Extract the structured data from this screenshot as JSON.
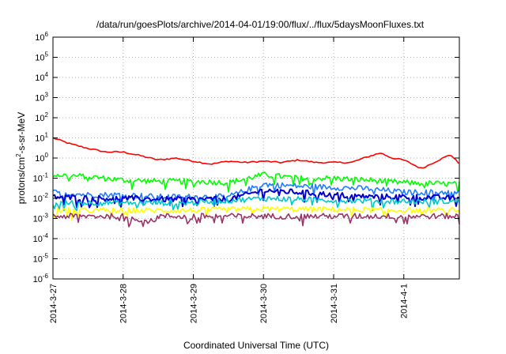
{
  "chart_data": {
    "type": "line",
    "title": "/data/run/goesPlots/archive/2014-04-01/19:00/flux/../flux/5daysMoonFluxes.txt",
    "xlabel": "Coordinated Universal Time (UTC)",
    "ylabel": {
      "base": "protons/cm",
      "sup": "2",
      "rest": "-s-sr-MeV"
    },
    "y_scale": "log",
    "ylim_exponents": [
      -6,
      6
    ],
    "y_tick_exponents": [
      -6,
      -5,
      -4,
      -3,
      -2,
      -1,
      0,
      1,
      2,
      3,
      4,
      5,
      6
    ],
    "y_tick_base": "10",
    "xlim": [
      "2014-03-27T00:00",
      "2014-04-01T19:00"
    ],
    "x_ticks": [
      {
        "date": "2014-03-27T00:00",
        "label": "2014-3-27"
      },
      {
        "date": "2014-03-28T00:00",
        "label": "2014-3-28"
      },
      {
        "date": "2014-03-29T00:00",
        "label": "2014-3-29"
      },
      {
        "date": "2014-03-30T00:00",
        "label": "2014-3-30"
      },
      {
        "date": "2014-03-31T00:00",
        "label": "2014-3-31"
      },
      {
        "date": "2014-04-01T00:00",
        "label": "2014-4-1"
      }
    ],
    "grid": true,
    "series": [
      {
        "color": "#ff0000",
        "kind": "smooth",
        "points": [
          [
            "2014-03-27T00:00",
            10
          ],
          [
            "2014-03-27T06:00",
            5
          ],
          [
            "2014-03-27T12:00",
            3
          ],
          [
            "2014-03-27T18:00",
            2
          ],
          [
            "2014-03-28T00:00",
            2
          ],
          [
            "2014-03-28T06:00",
            1.3
          ],
          [
            "2014-03-28T12:00",
            0.8
          ],
          [
            "2014-03-28T18:00",
            1.0
          ],
          [
            "2014-03-29T00:00",
            0.7
          ],
          [
            "2014-03-29T06:00",
            0.5
          ],
          [
            "2014-03-29T12:00",
            0.7
          ],
          [
            "2014-03-29T18:00",
            0.6
          ],
          [
            "2014-03-30T00:00",
            0.7
          ],
          [
            "2014-03-30T06:00",
            0.6
          ],
          [
            "2014-03-30T12:00",
            0.8
          ],
          [
            "2014-03-30T18:00",
            0.6
          ],
          [
            "2014-03-31T00:00",
            0.6
          ],
          [
            "2014-03-31T06:00",
            0.6
          ],
          [
            "2014-03-31T12:00",
            1.2
          ],
          [
            "2014-03-31T16:00",
            1.8
          ],
          [
            "2014-03-31T20:00",
            1.0
          ],
          [
            "2014-04-01T00:00",
            0.8
          ],
          [
            "2014-04-01T06:00",
            0.3
          ],
          [
            "2014-04-01T12:00",
            0.8
          ],
          [
            "2014-04-01T16:00",
            1.5
          ],
          [
            "2014-04-01T19:00",
            0.5
          ]
        ]
      },
      {
        "color": "#00ff00",
        "kind": "noisy",
        "points": [
          [
            "2014-03-27T00:00",
            0.15
          ],
          [
            "2014-03-27T12:00",
            0.12
          ],
          [
            "2014-03-28T00:00",
            0.08
          ],
          [
            "2014-03-28T12:00",
            0.07
          ],
          [
            "2014-03-29T00:00",
            0.07
          ],
          [
            "2014-03-29T12:00",
            0.06
          ],
          [
            "2014-03-30T00:00",
            0.15
          ],
          [
            "2014-03-30T12:00",
            0.1
          ],
          [
            "2014-03-31T00:00",
            0.1
          ],
          [
            "2014-03-31T12:00",
            0.08
          ],
          [
            "2014-04-01T00:00",
            0.06
          ],
          [
            "2014-04-01T19:00",
            0.05
          ]
        ]
      },
      {
        "color": "#1f7bff",
        "kind": "noisy",
        "points": [
          [
            "2014-03-27T00:00",
            0.02
          ],
          [
            "2014-03-27T12:00",
            0.015
          ],
          [
            "2014-03-28T00:00",
            0.015
          ],
          [
            "2014-03-28T12:00",
            0.012
          ],
          [
            "2014-03-29T00:00",
            0.012
          ],
          [
            "2014-03-29T12:00",
            0.012
          ],
          [
            "2014-03-30T00:00",
            0.05
          ],
          [
            "2014-03-30T12:00",
            0.04
          ],
          [
            "2014-03-31T00:00",
            0.035
          ],
          [
            "2014-03-31T12:00",
            0.03
          ],
          [
            "2014-04-01T00:00",
            0.02
          ],
          [
            "2014-04-01T19:00",
            0.02
          ]
        ]
      },
      {
        "color": "#0000cc",
        "kind": "noisy",
        "points": [
          [
            "2014-03-27T00:00",
            0.012
          ],
          [
            "2014-03-27T12:00",
            0.01
          ],
          [
            "2014-03-28T00:00",
            0.01
          ],
          [
            "2014-03-28T12:00",
            0.009
          ],
          [
            "2014-03-29T00:00",
            0.009
          ],
          [
            "2014-03-29T12:00",
            0.009
          ],
          [
            "2014-03-30T00:00",
            0.025
          ],
          [
            "2014-03-30T12:00",
            0.02
          ],
          [
            "2014-03-31T00:00",
            0.015
          ],
          [
            "2014-03-31T12:00",
            0.012
          ],
          [
            "2014-04-01T00:00",
            0.012
          ],
          [
            "2014-04-01T19:00",
            0.01
          ]
        ]
      },
      {
        "color": "#00c8c8",
        "kind": "noisy",
        "points": [
          [
            "2014-03-27T00:00",
            0.006
          ],
          [
            "2014-03-28T00:00",
            0.006
          ],
          [
            "2014-03-29T00:00",
            0.006
          ],
          [
            "2014-03-30T00:00",
            0.01
          ],
          [
            "2014-03-31T00:00",
            0.008
          ],
          [
            "2014-04-01T00:00",
            0.007
          ],
          [
            "2014-04-01T19:00",
            0.007
          ]
        ]
      },
      {
        "color": "#ffff00",
        "kind": "noisy",
        "points": [
          [
            "2014-03-27T00:00",
            0.0025
          ],
          [
            "2014-03-28T00:00",
            0.0025
          ],
          [
            "2014-03-29T00:00",
            0.0025
          ],
          [
            "2014-03-30T00:00",
            0.003
          ],
          [
            "2014-03-31T00:00",
            0.0028
          ],
          [
            "2014-04-01T00:00",
            0.0025
          ],
          [
            "2014-04-01T19:00",
            0.0025
          ]
        ]
      },
      {
        "color": "#993366",
        "kind": "noisy",
        "points": [
          [
            "2014-03-27T00:00",
            0.0013
          ],
          [
            "2014-03-28T00:00",
            0.0013
          ],
          [
            "2014-03-28T10:00",
            0.0007
          ],
          [
            "2014-03-28T12:00",
            0.0013
          ],
          [
            "2014-03-28T21:00",
            0.0013
          ],
          [
            "2014-03-28T22:00",
            0.0006
          ],
          [
            "2014-03-29T00:00",
            0.0013
          ],
          [
            "2014-03-30T00:00",
            0.0013
          ],
          [
            "2014-03-31T00:00",
            0.0013
          ],
          [
            "2014-04-01T00:00",
            0.0013
          ],
          [
            "2014-04-01T19:00",
            0.0013
          ]
        ]
      }
    ]
  }
}
